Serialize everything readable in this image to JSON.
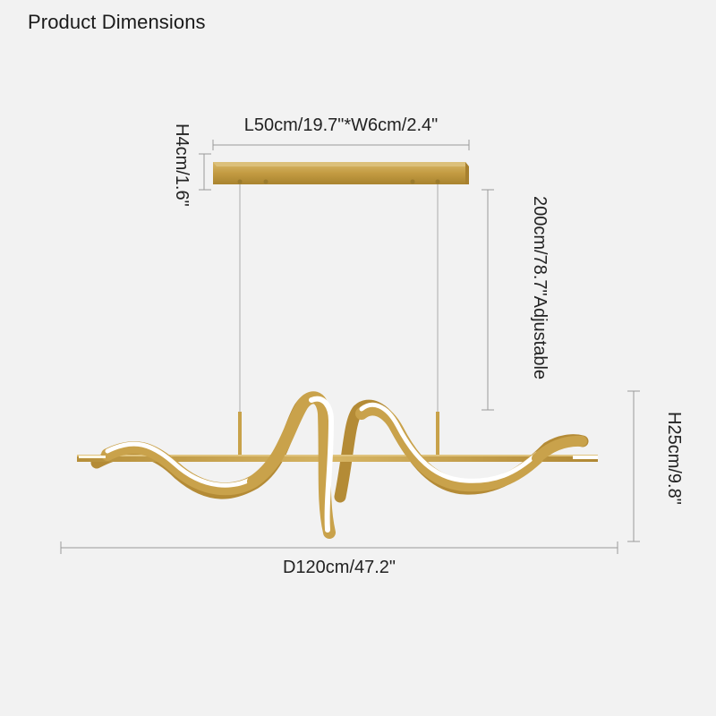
{
  "title": "Product Dimensions",
  "dimensions": {
    "canopy": "L50cm/19.7\"*W6cm/2.4\"",
    "canopy_height": "H4cm/1.6\"",
    "cord": "200cm/78.7\"Adjustable",
    "fixture_height": "H25cm/9.8\"",
    "fixture_length": "D120cm/47.2\""
  },
  "colors": {
    "background": "#f2f2f2",
    "brass": "#c8a24a",
    "led": "#ffffff",
    "dimension_line": "#9a9a9a"
  }
}
